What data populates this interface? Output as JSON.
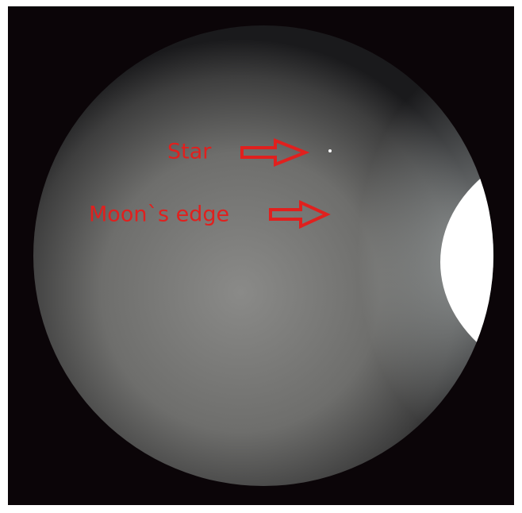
{
  "annotations": [
    {
      "label": "Star"
    },
    {
      "label": "Moon`s edge"
    }
  ]
}
